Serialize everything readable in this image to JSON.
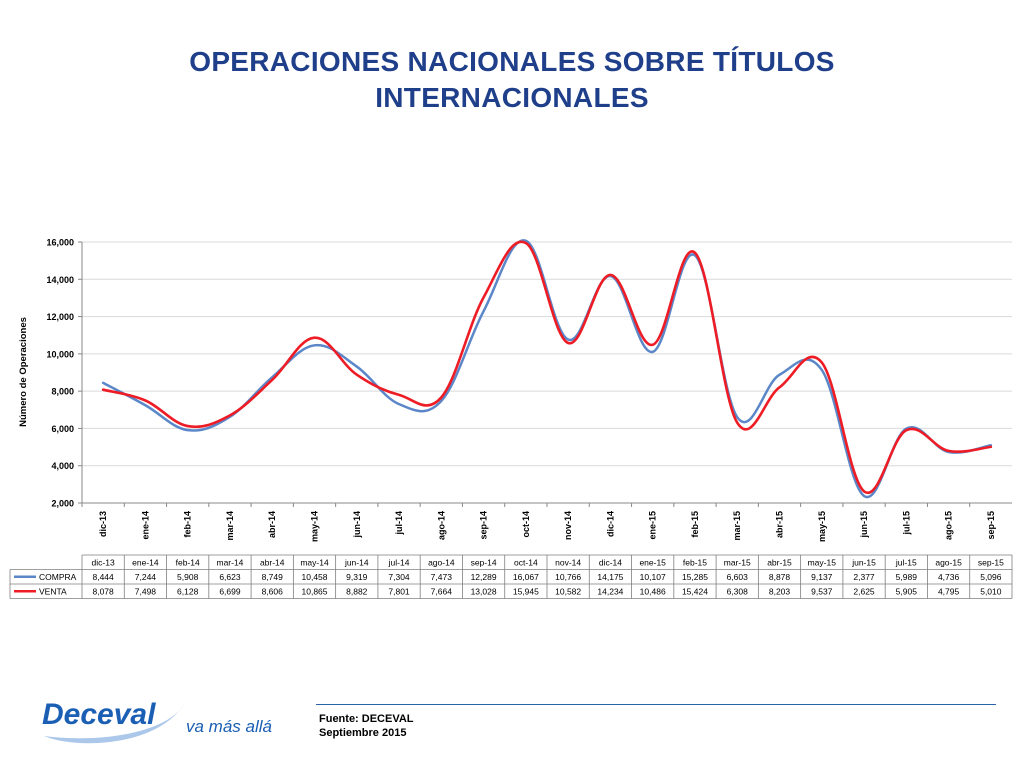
{
  "page": {
    "title_line1": "OPERACIONES NACIONALES SOBRE TÍTULOS",
    "title_line2": "INTERNACIONALES",
    "source_line1": "Fuente: DECEVAL",
    "source_line2": "Septiembre 2015",
    "logo_brand": "Deceval",
    "logo_tagline": "va más allá"
  },
  "colors": {
    "title": "#1f3f8a",
    "compra": "#5b87c9",
    "venta": "#ee1c25",
    "grid": "#d9d9d9",
    "logo_blue": "#1a5fb4"
  },
  "chart_data": {
    "type": "line",
    "ylabel": "Número de Operaciones",
    "ylim": [
      2000,
      16000
    ],
    "yticks": [
      "2,000",
      "4,000",
      "6,000",
      "8,000",
      "10,000",
      "12,000",
      "14,000",
      "16,000"
    ],
    "ytick_values": [
      2000,
      4000,
      6000,
      8000,
      10000,
      12000,
      14000,
      16000
    ],
    "grid": true,
    "categories": [
      "dic-13",
      "ene-14",
      "feb-14",
      "mar-14",
      "abr-14",
      "may-14",
      "jun-14",
      "jul-14",
      "ago-14",
      "sep-14",
      "oct-14",
      "nov-14",
      "dic-14",
      "ene-15",
      "feb-15",
      "mar-15",
      "abr-15",
      "may-15",
      "jun-15",
      "jul-15",
      "ago-15",
      "sep-15"
    ],
    "series": [
      {
        "name": "COMPRA",
        "values": [
          8444,
          7244,
          5908,
          6623,
          8749,
          10458,
          9319,
          7304,
          7473,
          12289,
          16067,
          10766,
          14175,
          10107,
          15285,
          6603,
          8878,
          9137,
          2377,
          5989,
          4736,
          5096
        ],
        "labels": [
          "8,444",
          "7,244",
          "5,908",
          "6,623",
          "8,749",
          "10,458",
          "9,319",
          "7,304",
          "7,473",
          "12,289",
          "16,067",
          "10,766",
          "14,175",
          "10,107",
          "15,285",
          "6,603",
          "8,878",
          "9,137",
          "2,377",
          "5,989",
          "4,736",
          "5,096"
        ]
      },
      {
        "name": "VENTA",
        "values": [
          8078,
          7498,
          6128,
          6699,
          8606,
          10865,
          8882,
          7801,
          7664,
          13028,
          15945,
          10582,
          14234,
          10486,
          15424,
          6308,
          8203,
          9537,
          2625,
          5905,
          4795,
          5010
        ],
        "labels": [
          "8,078",
          "7,498",
          "6,128",
          "6,699",
          "8,606",
          "10,865",
          "8,882",
          "7,801",
          "7,664",
          "13,028",
          "15,945",
          "10,582",
          "14,234",
          "10,486",
          "15,424",
          "6,308",
          "8,203",
          "9,537",
          "2,625",
          "5,905",
          "4,795",
          "5,010"
        ]
      }
    ],
    "data_table": true
  }
}
